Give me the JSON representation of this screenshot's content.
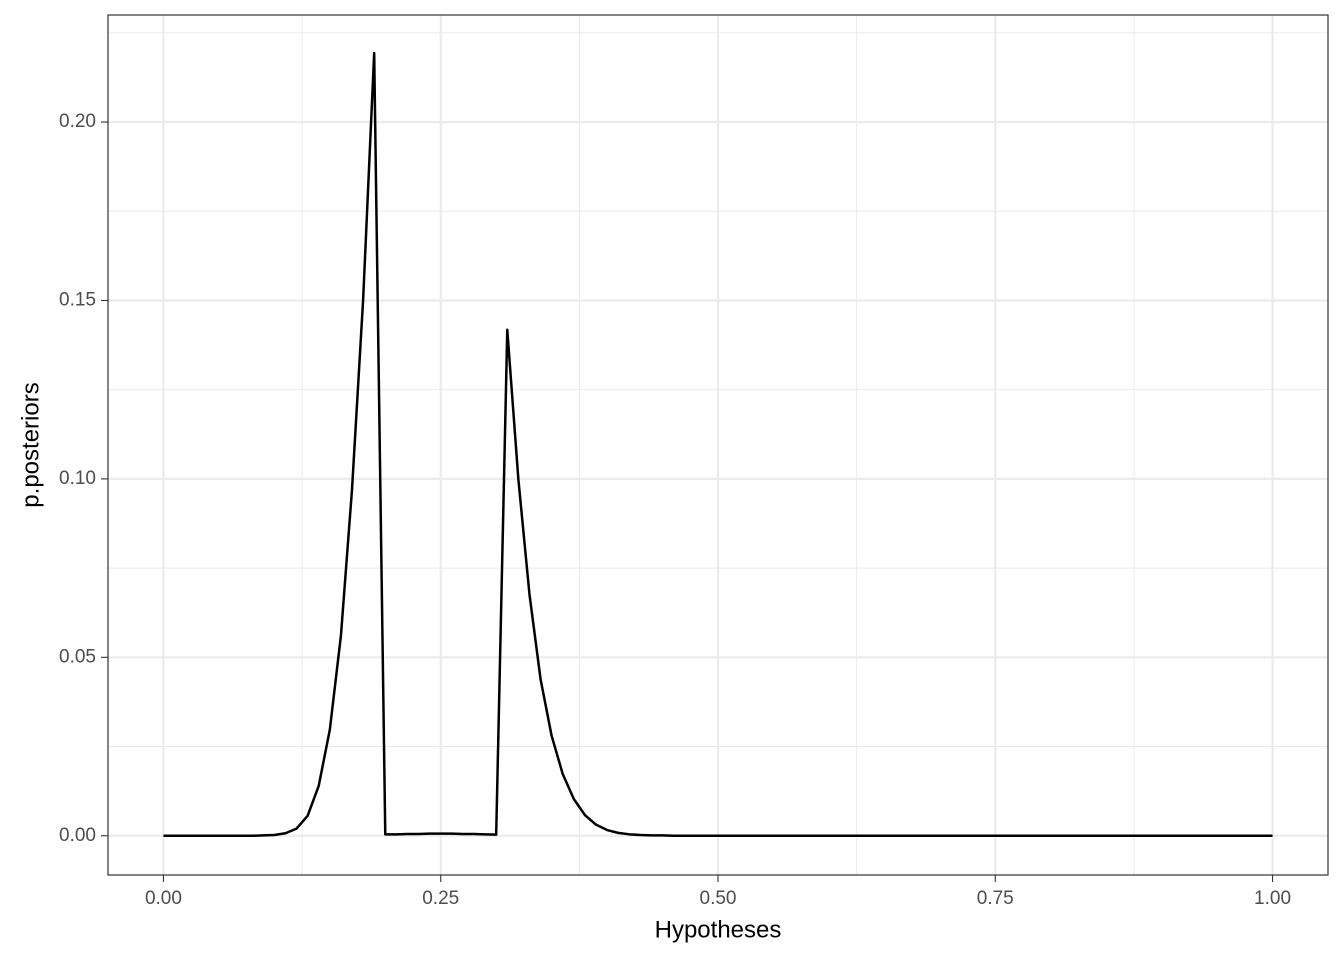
{
  "chart_data": {
    "type": "line",
    "x_label": "Hypotheses",
    "y_label": "p.posteriors",
    "x": [
      0,
      0.01,
      0.02,
      0.03,
      0.04,
      0.05,
      0.06,
      0.07,
      0.08,
      0.09,
      0.1,
      0.11,
      0.12,
      0.13,
      0.14,
      0.15,
      0.16,
      0.17,
      0.18,
      0.19,
      0.2,
      0.21,
      0.22,
      0.23,
      0.24,
      0.25,
      0.26,
      0.27,
      0.28,
      0.29,
      0.3,
      0.31,
      0.32,
      0.33,
      0.34,
      0.35,
      0.36,
      0.37,
      0.38,
      0.39,
      0.4,
      0.41,
      0.42,
      0.43,
      0.44,
      0.45,
      0.46,
      0.47,
      0.48,
      0.49,
      0.5,
      0.51,
      0.52,
      0.53,
      0.54,
      0.55,
      0.56,
      0.57,
      0.58,
      0.59,
      0.6,
      0.61,
      0.62,
      0.63,
      0.64,
      0.65,
      0.66,
      0.67,
      0.68,
      0.69,
      0.7,
      0.71,
      0.72,
      0.73,
      0.74,
      0.75,
      0.76,
      0.77,
      0.78,
      0.79,
      0.8,
      0.81,
      0.82,
      0.83,
      0.84,
      0.85,
      0.86,
      0.87,
      0.88,
      0.89,
      0.9,
      0.91,
      0.92,
      0.93,
      0.94,
      0.95,
      0.96,
      0.97,
      0.98,
      0.99,
      1
    ],
    "values": [
      0,
      0,
      0,
      0,
      0,
      0,
      0,
      0,
      0,
      0.0001,
      0.0002,
      0.0007,
      0.002,
      0.0056,
      0.014,
      0.0297,
      0.056,
      0.097,
      0.15,
      0.2193,
      0.0004,
      0.0004,
      0.0005,
      0.0005,
      0.0006,
      0.0006,
      0.0006,
      0.0005,
      0.0005,
      0.0004,
      0.0003,
      0.1418,
      0.0999,
      0.0677,
      0.0439,
      0.028,
      0.0173,
      0.0103,
      0.0058,
      0.0031,
      0.0016,
      0.0008,
      0.0004,
      0.0002,
      0.0001,
      0.0001,
      0,
      0,
      0,
      0,
      0,
      0,
      0,
      0,
      0,
      0,
      0,
      0,
      0,
      0,
      0,
      0,
      0,
      0,
      0,
      0,
      0,
      0,
      0,
      0,
      0,
      0,
      0,
      0,
      0,
      0,
      0,
      0,
      0,
      0,
      0,
      0,
      0,
      0,
      0,
      0,
      0,
      0,
      0,
      0,
      0,
      0,
      0,
      0,
      0,
      0,
      0,
      0,
      0,
      0,
      0
    ],
    "color": "#000000",
    "xlim": [
      -0.05,
      1.05
    ],
    "ylim": [
      -0.011,
      0.23
    ],
    "xticks": [
      {
        "value": 0,
        "label": "0.00"
      },
      {
        "value": 0.25,
        "label": "0.25"
      },
      {
        "value": 0.5,
        "label": "0.50"
      },
      {
        "value": 0.75,
        "label": "0.75"
      },
      {
        "value": 1,
        "label": "1.00"
      }
    ],
    "yticks": [
      {
        "value": 0,
        "label": "0.00"
      },
      {
        "value": 0.05,
        "label": "0.05"
      },
      {
        "value": 0.1,
        "label": "0.10"
      },
      {
        "value": 0.15,
        "label": "0.15"
      },
      {
        "value": 0.2,
        "label": "0.20"
      }
    ],
    "x_minor_ticks": [
      0.125,
      0.375,
      0.625,
      0.875
    ],
    "y_minor_ticks": [
      0.025,
      0.075,
      0.125,
      0.175,
      0.225
    ],
    "grid": true
  }
}
